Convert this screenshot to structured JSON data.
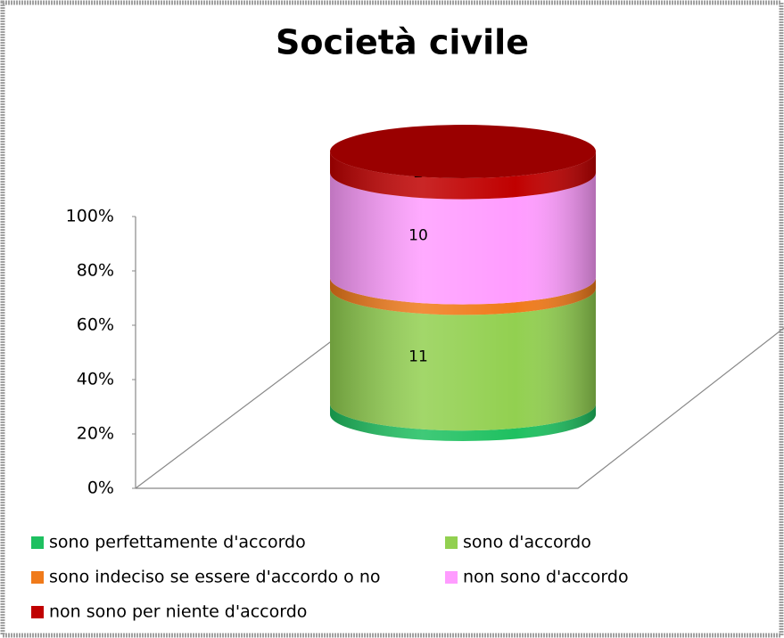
{
  "chart_data": {
    "type": "bar",
    "stacking": "percent",
    "shape": "cylinder",
    "title": "Società civile",
    "categories": [
      null
    ],
    "series": [
      {
        "name": "sono perfettamente d'accordo",
        "color": "#1ec060",
        "values": [
          1
        ]
      },
      {
        "name": "sono d'accordo",
        "color": "#92d050",
        "values": [
          11
        ]
      },
      {
        "name": "sono indeciso se essere d'accordo o no",
        "color": "#f07a1a",
        "values": [
          1
        ]
      },
      {
        "name": "non sono d'accordo",
        "color": "#ff9cff",
        "values": [
          10
        ]
      },
      {
        "name": "non sono per niente d'accordo",
        "color": "#c00000",
        "values": [
          2
        ]
      }
    ],
    "ylim": [
      0,
      100
    ],
    "yticks": [
      {
        "value": 0,
        "label": "0%"
      },
      {
        "value": 20,
        "label": "20%"
      },
      {
        "value": 40,
        "label": "40%"
      },
      {
        "value": 60,
        "label": "60%"
      },
      {
        "value": 80,
        "label": "80%"
      },
      {
        "value": 100,
        "label": "100%"
      }
    ],
    "legend": "bottom"
  }
}
